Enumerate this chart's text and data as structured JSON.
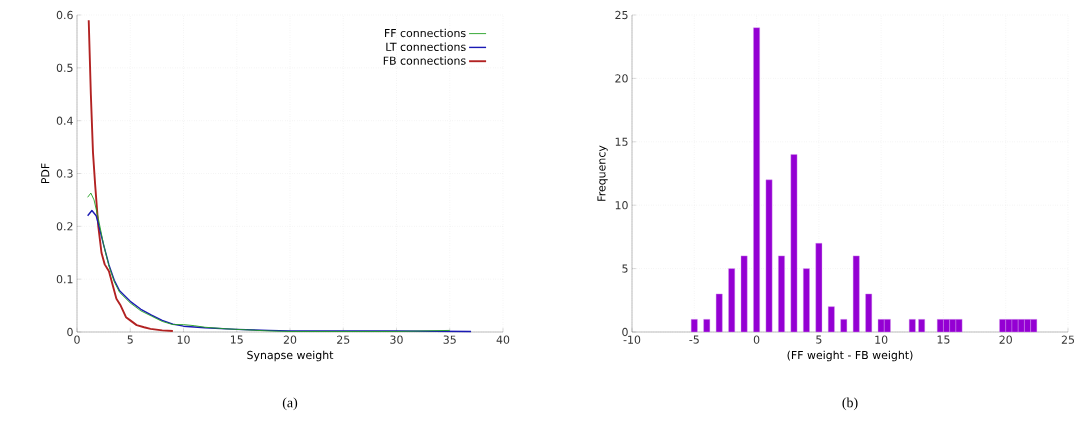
{
  "chart_data": [
    {
      "type": "line",
      "xlabel": "Synapse weight",
      "ylabel": "PDF",
      "xlim": [
        0,
        40
      ],
      "ylim": [
        0,
        0.6
      ],
      "xticks": [
        0,
        5,
        10,
        15,
        20,
        25,
        30,
        35,
        40
      ],
      "yticks": [
        0,
        0.1,
        0.2,
        0.3,
        0.4,
        0.5,
        0.6
      ],
      "grid": true,
      "legend": "top right",
      "annotations": [
        "(a)"
      ],
      "series": [
        {
          "name": "FF connections",
          "color": "#22a022",
          "x": [
            1.0,
            1.3,
            1.6,
            2,
            2.5,
            3,
            3.5,
            4,
            5,
            6,
            7,
            8,
            9,
            10,
            11,
            12,
            14,
            16,
            18,
            20,
            25,
            30,
            35
          ],
          "values": [
            0.255,
            0.263,
            0.25,
            0.215,
            0.165,
            0.125,
            0.095,
            0.075,
            0.055,
            0.04,
            0.03,
            0.02,
            0.014,
            0.014,
            0.012,
            0.009,
            0.006,
            0.004,
            0.002,
            0.001,
            0.001,
            0.001,
            0.003
          ]
        },
        {
          "name": "LT connections",
          "color": "#1a1ab4",
          "x": [
            1.0,
            1.4,
            1.8,
            2,
            2.5,
            3,
            3.5,
            4,
            5,
            6,
            7,
            8,
            9,
            10,
            12,
            15,
            18,
            20,
            25,
            30,
            37
          ],
          "values": [
            0.22,
            0.23,
            0.22,
            0.205,
            0.165,
            0.127,
            0.098,
            0.078,
            0.058,
            0.043,
            0.032,
            0.022,
            0.015,
            0.011,
            0.008,
            0.005,
            0.003,
            0.002,
            0.002,
            0.002,
            0.001
          ]
        },
        {
          "name": "FB connections",
          "color": "#b22222",
          "x": [
            1.1,
            1.3,
            1.5,
            1.7,
            2.0,
            2.3,
            2.6,
            3.0,
            3.4,
            3.7,
            4.1,
            4.6,
            5.0,
            5.6,
            6.3,
            6.9,
            8,
            9.0
          ],
          "values": [
            0.59,
            0.45,
            0.34,
            0.28,
            0.2,
            0.15,
            0.128,
            0.115,
            0.085,
            0.063,
            0.05,
            0.028,
            0.022,
            0.013,
            0.009,
            0.006,
            0.003,
            0.002
          ]
        }
      ]
    },
    {
      "type": "bar",
      "xlabel": "(FF weight - FB weight)",
      "ylabel": "Frequency",
      "xlim": [
        -10,
        25
      ],
      "ylim": [
        0,
        25
      ],
      "xticks": [
        -10,
        -5,
        0,
        5,
        10,
        15,
        20,
        25
      ],
      "yticks": [
        0,
        5,
        10,
        15,
        20,
        25
      ],
      "grid": true,
      "annotations": [
        "(b)"
      ],
      "color": "#9400d3",
      "x": [
        -5,
        -4,
        -3,
        -2,
        -1,
        0,
        1,
        2,
        3,
        4,
        5,
        6,
        7,
        8,
        9,
        10,
        10.5,
        12.5,
        13.25,
        14.75,
        15.25,
        15.75,
        16.25,
        19.75,
        20.25,
        20.75,
        21.25,
        21.75,
        22.25
      ],
      "values": [
        1,
        1,
        3,
        5,
        6,
        24,
        12,
        6,
        14,
        5,
        7,
        2,
        1,
        6,
        3,
        1,
        1,
        1,
        1,
        1,
        1,
        1,
        1,
        1,
        1,
        1,
        1,
        1,
        1
      ]
    }
  ]
}
